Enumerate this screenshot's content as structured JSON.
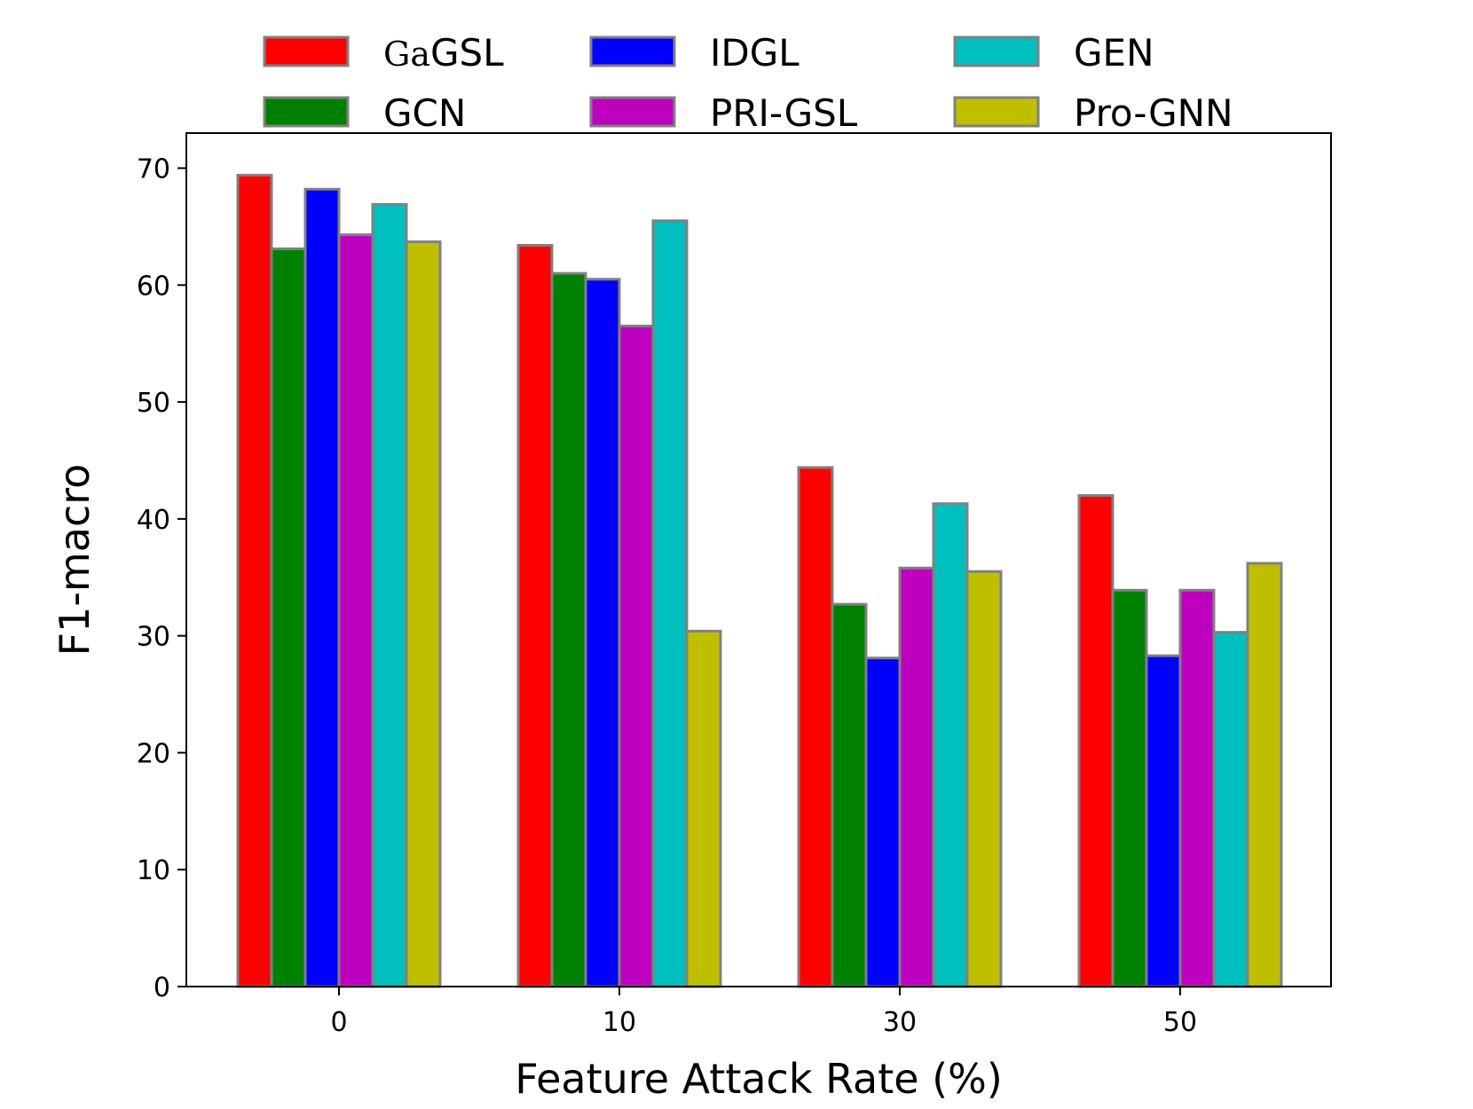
{
  "chart_data": {
    "type": "bar",
    "title": "",
    "xlabel": "Feature Attack Rate (%)",
    "ylabel": "F1-macro",
    "categories": [
      "0",
      "10",
      "30",
      "50"
    ],
    "ylim": [
      0,
      73
    ],
    "yticks": [
      0,
      10,
      20,
      30,
      40,
      50,
      60,
      70
    ],
    "grid": false,
    "legend_position": "top",
    "series": [
      {
        "name": "GaGSL",
        "name_prefix": "Ga",
        "name_suffix": "GSL",
        "color": "#ff0000",
        "values": [
          69.4,
          63.4,
          44.4,
          42.0
        ]
      },
      {
        "name": "GCN",
        "color": "#008000",
        "values": [
          63.1,
          61.0,
          32.7,
          33.9
        ]
      },
      {
        "name": "IDGL",
        "color": "#0000ff",
        "values": [
          68.2,
          60.5,
          28.1,
          28.3
        ]
      },
      {
        "name": "PRI-GSL",
        "color": "#bf00bf",
        "values": [
          64.3,
          56.5,
          35.8,
          33.9
        ]
      },
      {
        "name": "GEN",
        "color": "#00bfbf",
        "values": [
          66.9,
          65.5,
          41.3,
          30.3
        ]
      },
      {
        "name": "Pro-GNN",
        "color": "#bfbf00",
        "values": [
          63.7,
          30.4,
          35.5,
          36.2
        ]
      }
    ],
    "bar_edge_color": "#808080"
  }
}
